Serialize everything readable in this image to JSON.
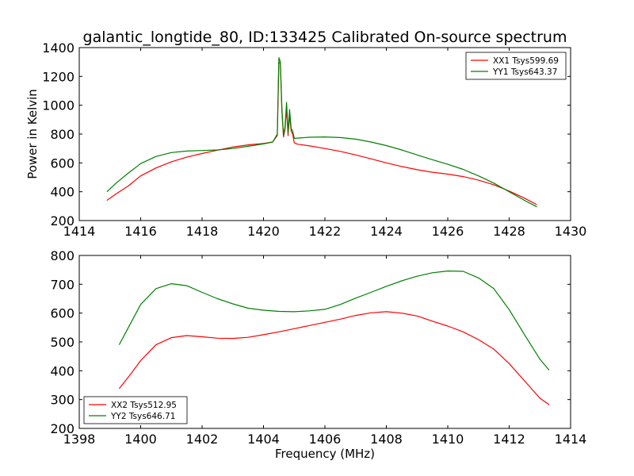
{
  "chart_data": [
    {
      "type": "line",
      "title": "galantic_longtide_80, ID:133425 Calibrated On-source spectrum",
      "xlabel": "",
      "ylabel": "Power in Kelvin",
      "xlim": [
        1414,
        1430
      ],
      "ylim": [
        200,
        1400
      ],
      "xticks": [
        "1414",
        "1416",
        "1418",
        "1420",
        "1422",
        "1424",
        "1426",
        "1428",
        "1430"
      ],
      "yticks": [
        "200",
        "400",
        "600",
        "800",
        "1000",
        "1200",
        "1400"
      ],
      "legend_position": "top-right",
      "grid": false,
      "series": [
        {
          "name": "XX1 Tsys599.69",
          "color": "#ff0000",
          "x": [
            1414.9,
            1415.2,
            1415.6,
            1416.0,
            1416.5,
            1417.0,
            1417.5,
            1418.0,
            1418.5,
            1419.0,
            1419.5,
            1420.0,
            1420.3,
            1420.45,
            1420.5,
            1420.55,
            1420.6,
            1420.65,
            1420.7,
            1420.75,
            1420.8,
            1420.85,
            1420.9,
            1420.95,
            1421.0,
            1421.1,
            1421.5,
            1422.0,
            1422.5,
            1423.0,
            1423.5,
            1424.0,
            1424.5,
            1425.0,
            1425.5,
            1426.0,
            1426.5,
            1427.0,
            1427.5,
            1428.0,
            1428.5,
            1428.9
          ],
          "values": [
            340,
            385,
            440,
            510,
            565,
            608,
            640,
            665,
            688,
            710,
            725,
            735,
            745,
            790,
            1300,
            1290,
            960,
            780,
            830,
            980,
            790,
            930,
            820,
            800,
            740,
            730,
            718,
            700,
            680,
            655,
            628,
            600,
            575,
            553,
            535,
            522,
            505,
            480,
            448,
            405,
            355,
            310
          ]
        },
        {
          "name": "YY1 Tsys643.37",
          "color": "#008000",
          "x": [
            1414.9,
            1415.2,
            1415.6,
            1416.0,
            1416.5,
            1417.0,
            1417.5,
            1418.0,
            1418.5,
            1419.0,
            1419.5,
            1420.0,
            1420.3,
            1420.45,
            1420.5,
            1420.55,
            1420.6,
            1420.65,
            1420.7,
            1420.75,
            1420.8,
            1420.85,
            1420.9,
            1420.95,
            1421.0,
            1421.1,
            1421.5,
            1422.0,
            1422.5,
            1423.0,
            1423.5,
            1424.0,
            1424.5,
            1425.0,
            1425.5,
            1426.0,
            1426.5,
            1427.0,
            1427.5,
            1428.0,
            1428.5,
            1428.9
          ],
          "values": [
            400,
            460,
            530,
            595,
            645,
            672,
            682,
            686,
            690,
            700,
            715,
            732,
            745,
            800,
            1330,
            1300,
            980,
            790,
            850,
            1020,
            810,
            970,
            840,
            820,
            770,
            772,
            778,
            780,
            776,
            765,
            745,
            720,
            690,
            655,
            622,
            590,
            555,
            510,
            460,
            400,
            340,
            295
          ]
        }
      ]
    },
    {
      "type": "line",
      "title": "",
      "xlabel": "Frequency (MHz)",
      "ylabel": "",
      "xlim": [
        1398,
        1414
      ],
      "ylim": [
        200,
        800
      ],
      "xticks": [
        "1398",
        "1400",
        "1402",
        "1404",
        "1406",
        "1408",
        "1410",
        "1412",
        "1414"
      ],
      "yticks": [
        "200",
        "300",
        "400",
        "500",
        "600",
        "700",
        "800"
      ],
      "legend_position": "bottom-left",
      "grid": false,
      "series": [
        {
          "name": "XX2 Tsys512.95",
          "color": "#ff0000",
          "x": [
            1399.3,
            1399.6,
            1400.0,
            1400.5,
            1401.0,
            1401.5,
            1402.0,
            1402.5,
            1403.0,
            1403.5,
            1404.0,
            1404.5,
            1405.0,
            1405.5,
            1406.0,
            1406.5,
            1407.0,
            1407.5,
            1408.0,
            1408.5,
            1409.0,
            1409.5,
            1410.0,
            1410.5,
            1411.0,
            1411.5,
            1412.0,
            1412.5,
            1413.0,
            1413.3
          ],
          "values": [
            338,
            378,
            435,
            490,
            515,
            522,
            518,
            513,
            512,
            516,
            525,
            535,
            546,
            557,
            568,
            579,
            592,
            601,
            605,
            600,
            590,
            572,
            555,
            535,
            508,
            475,
            425,
            365,
            305,
            282
          ]
        },
        {
          "name": "YY2 Tsys646.71",
          "color": "#008000",
          "x": [
            1399.3,
            1399.6,
            1400.0,
            1400.5,
            1401.0,
            1401.5,
            1402.0,
            1402.5,
            1403.0,
            1403.5,
            1404.0,
            1404.5,
            1405.0,
            1405.5,
            1406.0,
            1406.5,
            1407.0,
            1407.5,
            1408.0,
            1408.5,
            1409.0,
            1409.5,
            1410.0,
            1410.5,
            1411.0,
            1411.5,
            1412.0,
            1412.5,
            1413.0,
            1413.3
          ],
          "values": [
            490,
            550,
            630,
            685,
            702,
            695,
            672,
            650,
            632,
            617,
            610,
            606,
            605,
            608,
            613,
            630,
            652,
            672,
            693,
            712,
            728,
            740,
            746,
            745,
            722,
            685,
            612,
            525,
            440,
            402
          ]
        }
      ]
    }
  ]
}
